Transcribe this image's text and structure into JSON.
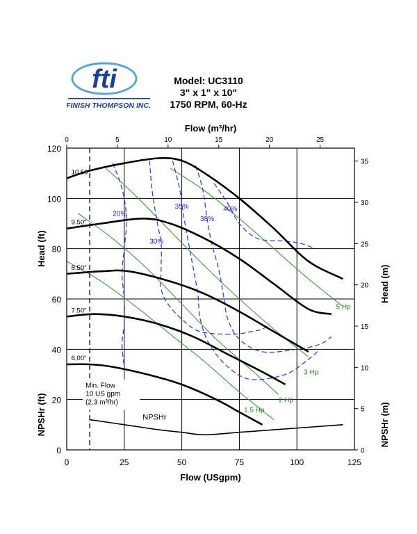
{
  "logo": {
    "mark": "fti",
    "company": "FINISH THOMPSON INC."
  },
  "header": {
    "model": "Model: UC3110",
    "size": "3\" x 1\" x 10\"",
    "speed": "1750 RPM, 60-Hz"
  },
  "chart_data": {
    "type": "line",
    "xlabel": "Flow  (USgpm)",
    "x2label": "Flow  (m³/hr)",
    "ylabel": "Head (ft)",
    "y2label": "Head (m)",
    "ylabel_npsh": "NPSHr (ft)",
    "y2label_npsh": "NPSHr (m)",
    "xlim": [
      0,
      125
    ],
    "ylim": [
      0,
      120
    ],
    "x_ticks": [
      0,
      25,
      50,
      75,
      100,
      125
    ],
    "y_ticks": [
      0,
      20,
      40,
      60,
      80,
      100,
      120
    ],
    "x2_ticks": [
      0,
      5,
      10,
      15,
      20,
      25
    ],
    "y2_ticks": [
      0,
      5,
      10,
      15,
      20,
      25,
      30,
      35
    ],
    "grid": true,
    "impeller_curves": [
      {
        "name": "10.50\"",
        "points": [
          [
            0,
            108
          ],
          [
            10,
            111
          ],
          [
            25,
            114
          ],
          [
            40,
            116
          ],
          [
            50,
            115
          ],
          [
            60,
            110
          ],
          [
            75,
            100
          ],
          [
            90,
            88
          ],
          [
            105,
            75
          ],
          [
            120,
            68
          ]
        ]
      },
      {
        "name": "9.50\"",
        "points": [
          [
            0,
            88
          ],
          [
            15,
            90
          ],
          [
            33,
            92
          ],
          [
            45,
            90
          ],
          [
            60,
            84
          ],
          [
            75,
            76
          ],
          [
            90,
            66
          ],
          [
            105,
            56
          ],
          [
            115,
            54
          ]
        ]
      },
      {
        "name": "8.50\"",
        "points": [
          [
            0,
            70
          ],
          [
            15,
            71
          ],
          [
            27,
            71
          ],
          [
            45,
            67
          ],
          [
            60,
            62
          ],
          [
            75,
            55
          ],
          [
            90,
            47
          ],
          [
            105,
            39
          ]
        ]
      },
      {
        "name": "7.50\"",
        "points": [
          [
            0,
            53
          ],
          [
            12,
            54
          ],
          [
            25,
            53
          ],
          [
            40,
            50
          ],
          [
            55,
            45
          ],
          [
            70,
            38
          ],
          [
            85,
            31
          ],
          [
            95,
            26
          ]
        ]
      },
      {
        "name": "6.00\"",
        "points": [
          [
            0,
            34
          ],
          [
            10,
            34
          ],
          [
            20,
            33
          ],
          [
            35,
            30
          ],
          [
            50,
            26
          ],
          [
            65,
            20
          ],
          [
            75,
            15
          ],
          [
            85,
            10
          ]
        ]
      }
    ],
    "npshr": {
      "name": "NPSHr",
      "points": [
        [
          10,
          12
        ],
        [
          25,
          10
        ],
        [
          40,
          8
        ],
        [
          50,
          7
        ],
        [
          60,
          6
        ],
        [
          75,
          7
        ],
        [
          90,
          8
        ],
        [
          105,
          9
        ],
        [
          120,
          10
        ]
      ]
    },
    "efficiency": [
      {
        "name": "20%",
        "points": [
          [
            20,
            114
          ],
          [
            24,
            104
          ],
          [
            26,
            92
          ],
          [
            25,
            80
          ],
          [
            24,
            70
          ],
          [
            25,
            60
          ],
          [
            25,
            50
          ],
          [
            24,
            42
          ],
          [
            25,
            33
          ]
        ]
      },
      {
        "name": "30%",
        "points": [
          [
            36,
            115
          ],
          [
            37,
            104
          ],
          [
            39,
            92
          ],
          [
            41,
            82
          ],
          [
            41,
            72
          ],
          [
            41,
            64
          ],
          [
            44,
            58
          ],
          [
            50,
            52
          ],
          [
            58,
            47
          ],
          [
            72,
            46
          ],
          [
            80,
            47
          ],
          [
            85,
            48
          ],
          [
            88,
            50
          ]
        ]
      },
      {
        "name": "35%",
        "points": [
          [
            46,
            115
          ],
          [
            49,
            104
          ],
          [
            51,
            92
          ],
          [
            53,
            82
          ],
          [
            55,
            72
          ],
          [
            57,
            62
          ],
          [
            58,
            52
          ],
          [
            62,
            42
          ],
          [
            70,
            33
          ],
          [
            80,
            28
          ],
          [
            95,
            30
          ],
          [
            105,
            36
          ],
          [
            110,
            40
          ]
        ]
      },
      {
        "name": "38%",
        "points": [
          [
            56,
            113
          ],
          [
            59,
            104
          ],
          [
            61,
            92
          ],
          [
            63,
            82
          ],
          [
            66,
            72
          ],
          [
            68,
            62
          ],
          [
            70,
            52
          ],
          [
            75,
            44
          ],
          [
            85,
            39
          ],
          [
            100,
            40
          ],
          [
            110,
            42
          ],
          [
            115,
            45
          ]
        ]
      },
      {
        "name": "40%",
        "points": [
          [
            64,
            106
          ],
          [
            70,
            98
          ],
          [
            75,
            90
          ],
          [
            83,
            84
          ],
          [
            95,
            83
          ],
          [
            102,
            82
          ],
          [
            108,
            80
          ]
        ]
      }
    ],
    "horsepower": [
      {
        "name": "1.5 Hp",
        "points": [
          [
            0,
            75
          ],
          [
            15,
            67
          ],
          [
            30,
            57
          ],
          [
            45,
            46
          ],
          [
            60,
            35
          ],
          [
            75,
            23
          ],
          [
            90,
            12
          ]
        ]
      },
      {
        "name": "2 Hp",
        "points": [
          [
            5,
            94
          ],
          [
            20,
            84
          ],
          [
            35,
            72
          ],
          [
            50,
            58
          ],
          [
            65,
            44
          ],
          [
            80,
            32
          ],
          [
            92,
            22
          ]
        ]
      },
      {
        "name": "3 Hp",
        "points": [
          [
            17,
            112
          ],
          [
            30,
            101
          ],
          [
            45,
            87
          ],
          [
            60,
            73
          ],
          [
            75,
            60
          ],
          [
            90,
            48
          ],
          [
            105,
            37
          ]
        ]
      },
      {
        "name": "5 Hp",
        "points": [
          [
            45,
            112
          ],
          [
            60,
            103
          ],
          [
            75,
            92
          ],
          [
            90,
            80
          ],
          [
            105,
            68
          ],
          [
            120,
            57
          ]
        ]
      }
    ],
    "min_flow": {
      "x": 10,
      "label": [
        "Min. Flow",
        "10 US gpm",
        "(2.3 m³/hr)"
      ]
    }
  }
}
